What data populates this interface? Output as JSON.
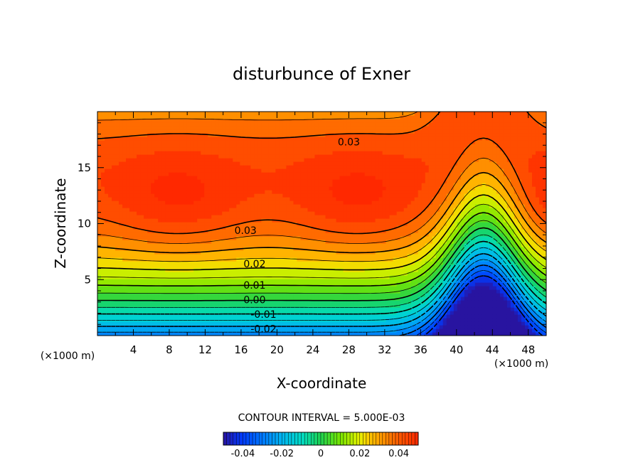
{
  "chart_data": {
    "type": "contour",
    "title": "disturbunce of Exner",
    "xlabel": "X-coordinate",
    "ylabel": "Z-coordinate",
    "x_unit_left": "(×1000 m)",
    "x_unit_right": "(×1000 m)",
    "xlim": [
      0,
      50
    ],
    "ylim": [
      0,
      20
    ],
    "x_ticks": [
      4,
      8,
      12,
      16,
      20,
      24,
      28,
      32,
      36,
      40,
      44,
      48
    ],
    "y_ticks": [
      5,
      10,
      15
    ],
    "contour_interval_text": "CONTOUR INTERVAL = 5.000E-03",
    "contour_labels": [
      {
        "text": "0.03",
        "x": 28,
        "y": 17.3
      },
      {
        "text": "0.03",
        "x": 16.5,
        "y": 9.4
      },
      {
        "text": "0.02",
        "x": 17.5,
        "y": 6.4
      },
      {
        "text": "0.01",
        "x": 17.5,
        "y": 4.5
      },
      {
        "text": "0.00",
        "x": 17.5,
        "y": 3.2
      },
      {
        "text": "-0.01",
        "x": 18.5,
        "y": 1.9
      },
      {
        "text": "-0.02",
        "x": 18.5,
        "y": 0.6
      }
    ],
    "colorbar": {
      "range": [
        -0.05,
        0.05
      ],
      "ticks": [
        {
          "value": -0.04,
          "label": "-0.04"
        },
        {
          "value": -0.02,
          "label": "-0.02"
        },
        {
          "value": 0,
          "label": "0"
        },
        {
          "value": 0.02,
          "label": "0.02"
        },
        {
          "value": 0.04,
          "label": "0.04"
        }
      ]
    },
    "colors": {
      "min": "#2020a0",
      "low": "#1a8cff",
      "zero": "#20d060",
      "mid": "#e8f000",
      "high": "#ffa000",
      "max": "#ff4000"
    }
  }
}
